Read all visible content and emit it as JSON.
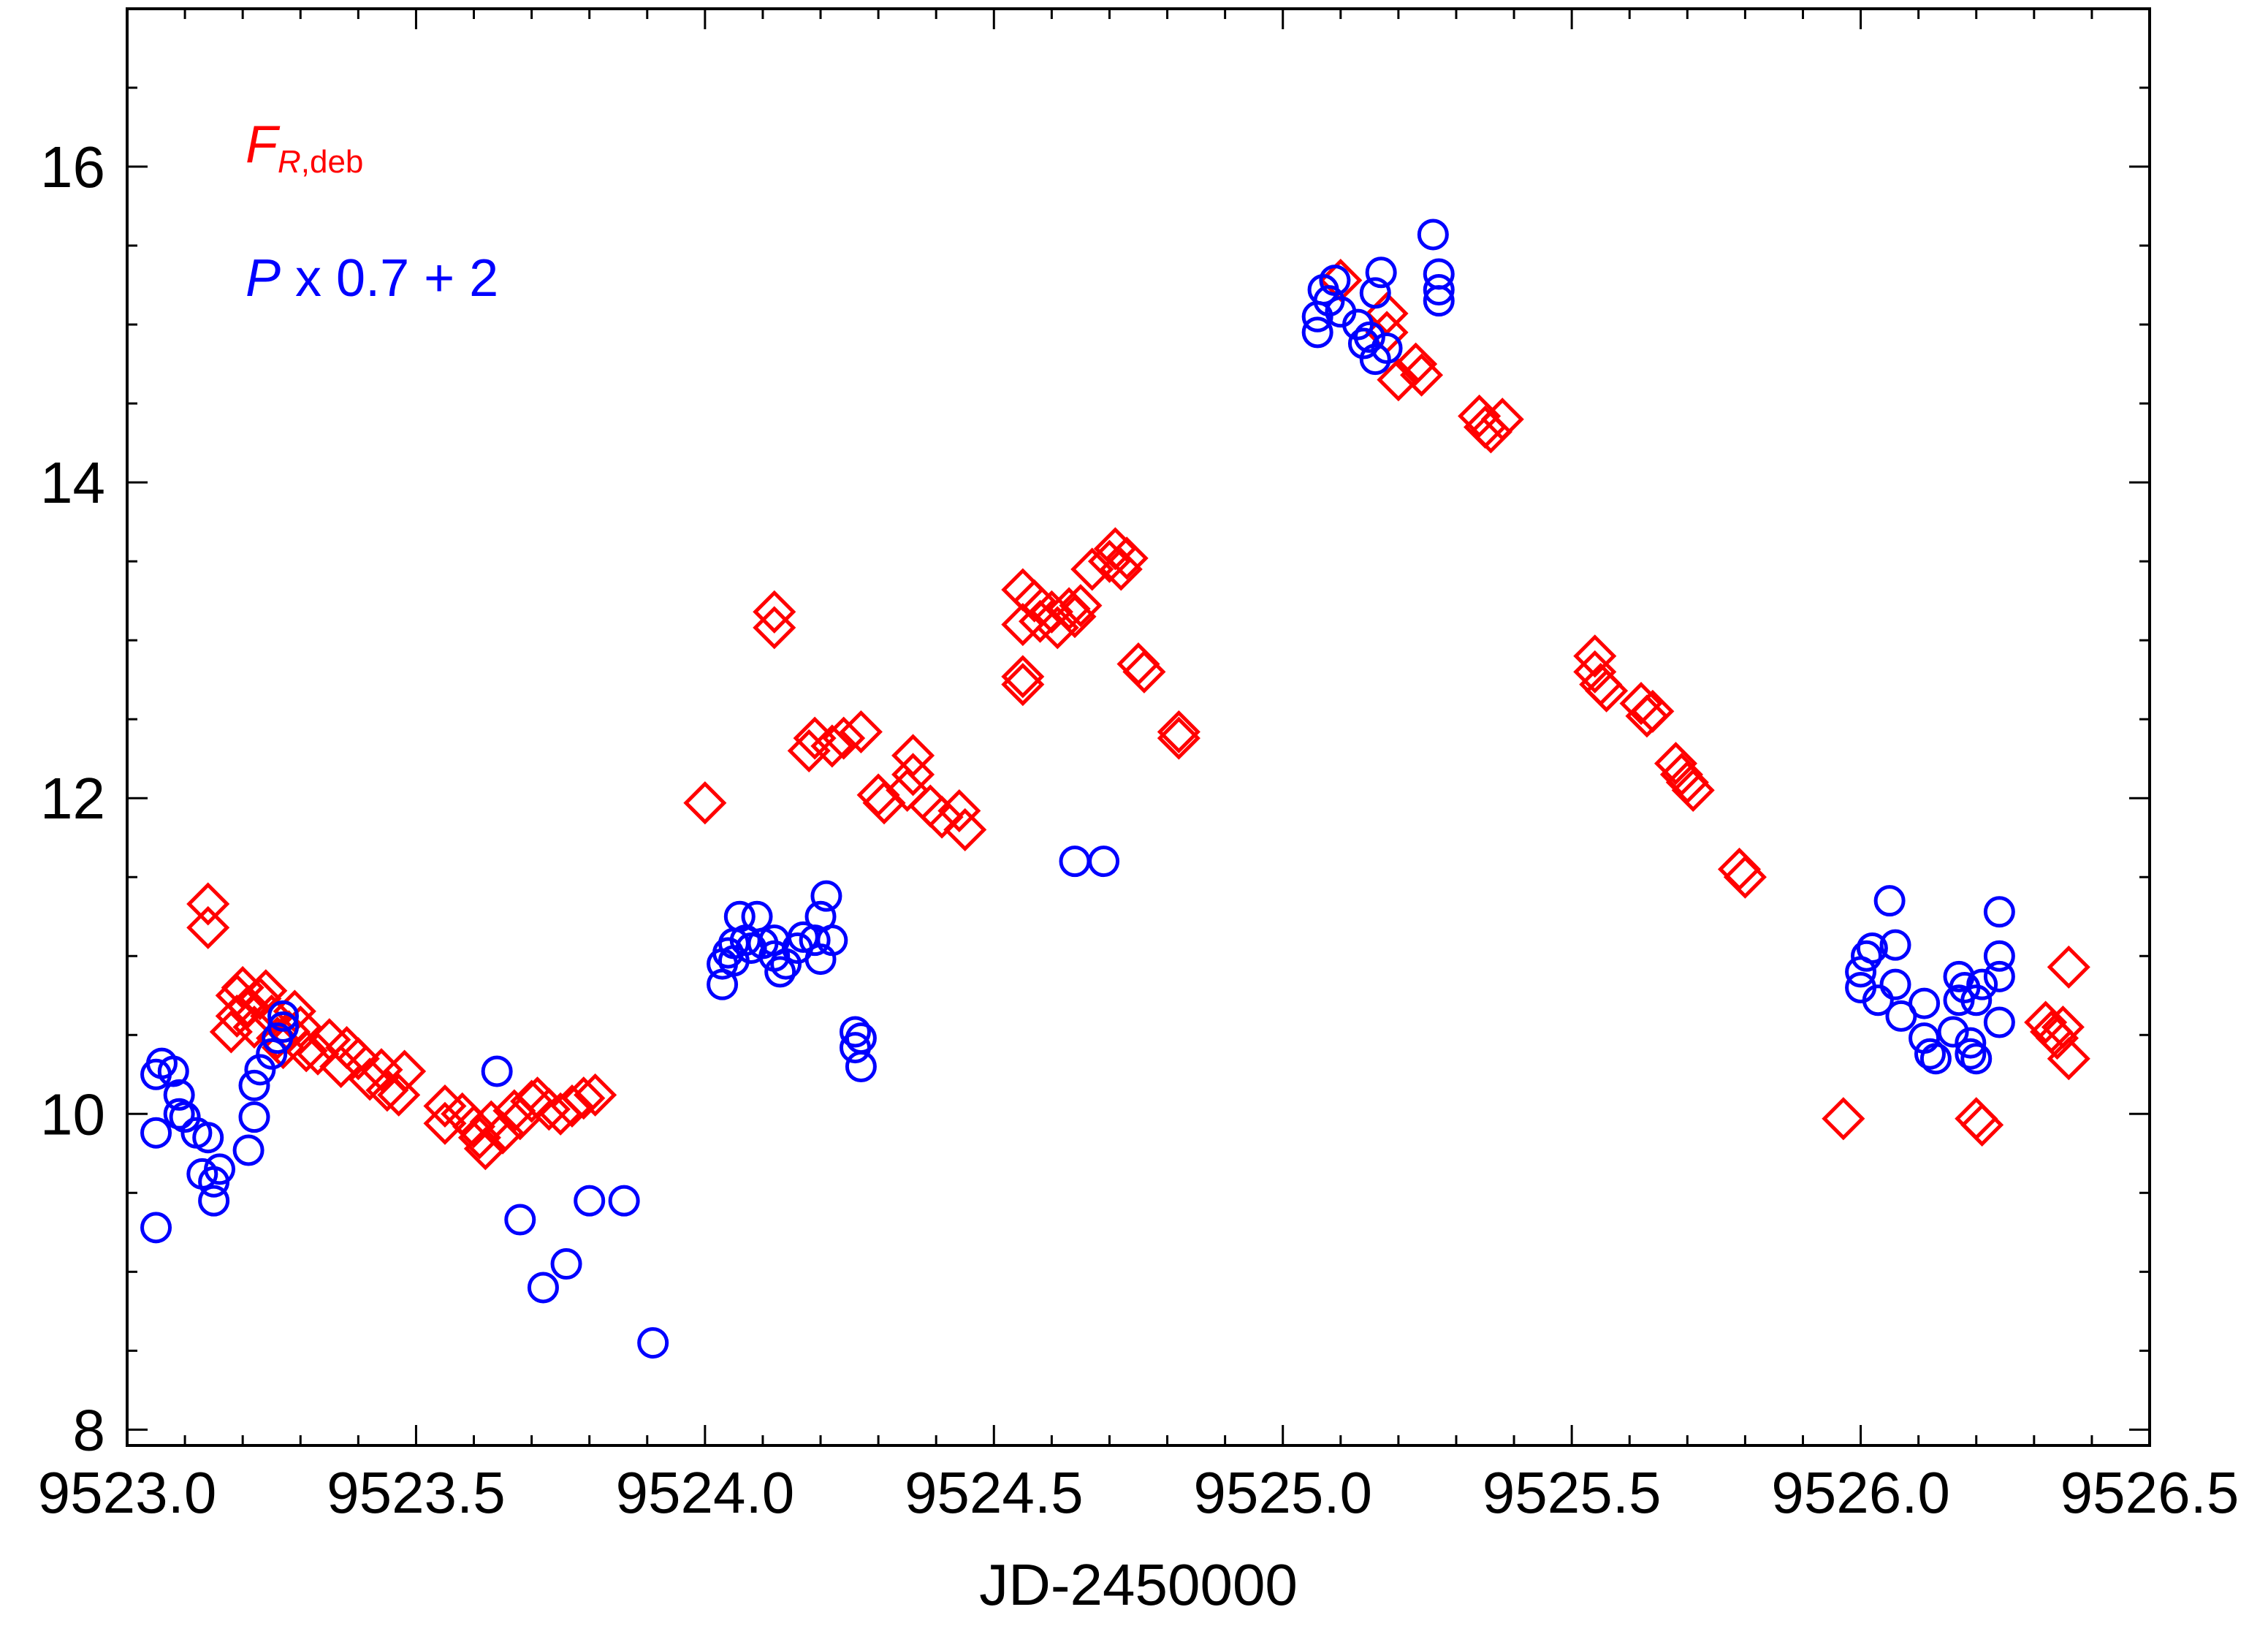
{
  "chart_data": {
    "type": "scatter",
    "title": "",
    "xlabel": "JD-2450000",
    "ylabel": "",
    "xlim": [
      9523.0,
      9526.5
    ],
    "ylim": [
      7.9,
      17.0
    ],
    "xticks": [
      9523.0,
      9523.5,
      9524.0,
      9524.5,
      9525.0,
      9525.5,
      9526.0,
      9526.5
    ],
    "xtick_labels": [
      "9523.0",
      "9523.5",
      "9524.0",
      "9524.5",
      "9525.0",
      "9525.5",
      "9526.0",
      "9526.5"
    ],
    "yticks": [
      8,
      10,
      12,
      14,
      16
    ],
    "ytick_labels": [
      "8",
      "10",
      "12",
      "14",
      "16"
    ],
    "grid": false,
    "legend_position": "top-left",
    "legend": [
      {
        "main": "F",
        "sub": "R,deb",
        "rest": "",
        "color": "#ff0000"
      },
      {
        "main": "P",
        "sub": "",
        "rest": " x 0.7 + 2",
        "color": "#0000ff"
      }
    ],
    "series": [
      {
        "name": "F_R,deb",
        "marker": "diamond",
        "color": "#ff0000",
        "points": [
          [
            9523.14,
            11.33
          ],
          [
            9523.14,
            11.18
          ],
          [
            9523.18,
            10.52
          ],
          [
            9523.19,
            10.62
          ],
          [
            9523.19,
            10.75
          ],
          [
            9523.2,
            10.8
          ],
          [
            9523.21,
            10.68
          ],
          [
            9523.22,
            10.55
          ],
          [
            9523.23,
            10.73
          ],
          [
            9523.24,
            10.78
          ],
          [
            9523.25,
            10.62
          ],
          [
            9523.26,
            10.48
          ],
          [
            9523.27,
            10.42
          ],
          [
            9523.28,
            10.52
          ],
          [
            9523.29,
            10.65
          ],
          [
            9523.3,
            10.55
          ],
          [
            9523.31,
            10.4
          ],
          [
            9523.33,
            10.38
          ],
          [
            9523.35,
            10.47
          ],
          [
            9523.37,
            10.3
          ],
          [
            9523.38,
            10.42
          ],
          [
            9523.4,
            10.35
          ],
          [
            9523.42,
            10.22
          ],
          [
            9523.44,
            10.28
          ],
          [
            9523.45,
            10.15
          ],
          [
            9523.47,
            10.12
          ],
          [
            9523.48,
            10.27
          ],
          [
            9523.55,
            10.05
          ],
          [
            9523.55,
            9.94
          ],
          [
            9523.58,
            10.0
          ],
          [
            9523.6,
            9.92
          ],
          [
            9523.61,
            9.85
          ],
          [
            9523.62,
            9.78
          ],
          [
            9523.63,
            9.95
          ],
          [
            9523.65,
            9.88
          ],
          [
            9523.67,
            10.02
          ],
          [
            9523.68,
            9.97
          ],
          [
            9523.7,
            10.08
          ],
          [
            9523.71,
            10.1
          ],
          [
            9523.73,
            10.03
          ],
          [
            9523.75,
            10.0
          ],
          [
            9523.77,
            10.05
          ],
          [
            9523.79,
            10.1
          ],
          [
            9523.81,
            10.12
          ],
          [
            9524.0,
            11.97
          ],
          [
            9524.12,
            13.18
          ],
          [
            9524.12,
            13.08
          ],
          [
            9524.18,
            12.3
          ],
          [
            9524.19,
            12.38
          ],
          [
            9524.22,
            12.33
          ],
          [
            9524.24,
            12.38
          ],
          [
            9524.27,
            12.42
          ],
          [
            9524.3,
            12.02
          ],
          [
            9524.31,
            11.97
          ],
          [
            9524.35,
            12.05
          ],
          [
            9524.36,
            12.15
          ],
          [
            9524.36,
            12.27
          ],
          [
            9524.39,
            11.95
          ],
          [
            9524.41,
            11.88
          ],
          [
            9524.44,
            11.92
          ],
          [
            9524.45,
            11.8
          ],
          [
            9524.55,
            12.77
          ],
          [
            9524.55,
            12.72
          ],
          [
            9524.55,
            13.1
          ],
          [
            9524.55,
            13.32
          ],
          [
            9524.57,
            13.25
          ],
          [
            9524.58,
            13.12
          ],
          [
            9524.6,
            13.18
          ],
          [
            9524.61,
            13.08
          ],
          [
            9524.63,
            13.2
          ],
          [
            9524.64,
            13.15
          ],
          [
            9524.65,
            13.22
          ],
          [
            9524.67,
            13.45
          ],
          [
            9524.7,
            13.5
          ],
          [
            9524.71,
            13.58
          ],
          [
            9524.72,
            13.45
          ],
          [
            9524.73,
            13.52
          ],
          [
            9524.75,
            12.85
          ],
          [
            9524.76,
            12.8
          ],
          [
            9524.82,
            12.42
          ],
          [
            9524.82,
            12.38
          ],
          [
            9525.1,
            15.28
          ],
          [
            9525.18,
            15.07
          ],
          [
            9525.18,
            14.95
          ],
          [
            9525.2,
            14.65
          ],
          [
            9525.23,
            14.75
          ],
          [
            9525.24,
            14.68
          ],
          [
            9525.34,
            14.42
          ],
          [
            9525.35,
            14.35
          ],
          [
            9525.36,
            14.32
          ],
          [
            9525.38,
            14.4
          ],
          [
            9525.54,
            12.9
          ],
          [
            9525.54,
            12.8
          ],
          [
            9525.55,
            12.72
          ],
          [
            9525.56,
            12.68
          ],
          [
            9525.62,
            12.6
          ],
          [
            9525.63,
            12.52
          ],
          [
            9525.64,
            12.55
          ],
          [
            9525.68,
            12.22
          ],
          [
            9525.69,
            12.15
          ],
          [
            9525.7,
            12.1
          ],
          [
            9525.71,
            12.05
          ],
          [
            9525.79,
            11.55
          ],
          [
            9525.8,
            11.5
          ],
          [
            9525.97,
            9.97
          ],
          [
            9526.2,
            9.97
          ],
          [
            9526.21,
            9.93
          ],
          [
            9526.32,
            10.58
          ],
          [
            9526.33,
            10.52
          ],
          [
            9526.34,
            10.48
          ],
          [
            9526.35,
            10.55
          ],
          [
            9526.36,
            10.35
          ],
          [
            9526.36,
            10.93
          ]
        ]
      },
      {
        "name": "P x 0.7 + 2",
        "marker": "circle",
        "color": "#0000ff",
        "points": [
          [
            9523.05,
            10.25
          ],
          [
            9523.05,
            9.88
          ],
          [
            9523.05,
            9.28
          ],
          [
            9523.06,
            10.32
          ],
          [
            9523.08,
            10.27
          ],
          [
            9523.09,
            10.12
          ],
          [
            9523.09,
            10.0
          ],
          [
            9523.1,
            9.98
          ],
          [
            9523.12,
            9.88
          ],
          [
            9523.13,
            9.62
          ],
          [
            9523.14,
            9.85
          ],
          [
            9523.15,
            9.57
          ],
          [
            9523.15,
            9.45
          ],
          [
            9523.16,
            9.65
          ],
          [
            9523.21,
            9.77
          ],
          [
            9523.22,
            9.98
          ],
          [
            9523.22,
            10.18
          ],
          [
            9523.23,
            10.28
          ],
          [
            9523.25,
            10.38
          ],
          [
            9523.26,
            10.48
          ],
          [
            9523.27,
            10.55
          ],
          [
            9523.27,
            10.62
          ],
          [
            9523.64,
            10.27
          ],
          [
            9523.68,
            9.33
          ],
          [
            9523.72,
            8.9
          ],
          [
            9523.76,
            9.05
          ],
          [
            9523.8,
            9.45
          ],
          [
            9523.86,
            9.45
          ],
          [
            9523.91,
            8.55
          ],
          [
            9524.03,
            10.82
          ],
          [
            9524.03,
            10.95
          ],
          [
            9524.04,
            11.02
          ],
          [
            9524.05,
            11.08
          ],
          [
            9524.05,
            10.97
          ],
          [
            9524.06,
            11.25
          ],
          [
            9524.07,
            11.1
          ],
          [
            9524.08,
            11.05
          ],
          [
            9524.09,
            11.25
          ],
          [
            9524.1,
            11.08
          ],
          [
            9524.12,
            11.0
          ],
          [
            9524.12,
            11.1
          ],
          [
            9524.13,
            10.9
          ],
          [
            9524.14,
            10.95
          ],
          [
            9524.16,
            11.05
          ],
          [
            9524.17,
            11.12
          ],
          [
            9524.19,
            11.1
          ],
          [
            9524.2,
            10.98
          ],
          [
            9524.2,
            11.25
          ],
          [
            9524.21,
            11.38
          ],
          [
            9524.22,
            11.1
          ],
          [
            9524.26,
            10.52
          ],
          [
            9524.26,
            10.42
          ],
          [
            9524.27,
            10.3
          ],
          [
            9524.27,
            10.48
          ],
          [
            9524.64,
            11.6
          ],
          [
            9524.69,
            11.6
          ],
          [
            9525.06,
            15.05
          ],
          [
            9525.06,
            14.95
          ],
          [
            9525.07,
            15.22
          ],
          [
            9525.08,
            15.15
          ],
          [
            9525.09,
            15.28
          ],
          [
            9525.1,
            15.08
          ],
          [
            9525.13,
            15.0
          ],
          [
            9525.14,
            14.88
          ],
          [
            9525.15,
            14.92
          ],
          [
            9525.16,
            14.78
          ],
          [
            9525.16,
            15.2
          ],
          [
            9525.17,
            15.33
          ],
          [
            9525.18,
            14.85
          ],
          [
            9525.26,
            15.57
          ],
          [
            9525.27,
            15.32
          ],
          [
            9525.27,
            15.22
          ],
          [
            9525.27,
            15.15
          ],
          [
            9526.0,
            10.8
          ],
          [
            9526.0,
            10.9
          ],
          [
            9526.01,
            11.0
          ],
          [
            9526.02,
            11.05
          ],
          [
            9526.03,
            10.72
          ],
          [
            9526.05,
            11.35
          ],
          [
            9526.06,
            11.07
          ],
          [
            9526.06,
            10.82
          ],
          [
            9526.07,
            10.62
          ],
          [
            9526.11,
            10.7
          ],
          [
            9526.11,
            10.48
          ],
          [
            9526.12,
            10.38
          ],
          [
            9526.13,
            10.35
          ],
          [
            9526.16,
            10.52
          ],
          [
            9526.17,
            10.72
          ],
          [
            9526.17,
            10.87
          ],
          [
            9526.18,
            10.8
          ],
          [
            9526.19,
            10.45
          ],
          [
            9526.19,
            10.38
          ],
          [
            9526.2,
            10.35
          ],
          [
            9526.2,
            10.72
          ],
          [
            9526.21,
            10.82
          ],
          [
            9526.24,
            10.58
          ],
          [
            9526.24,
            10.87
          ],
          [
            9526.24,
            11.0
          ],
          [
            9526.24,
            11.28
          ]
        ]
      }
    ]
  }
}
